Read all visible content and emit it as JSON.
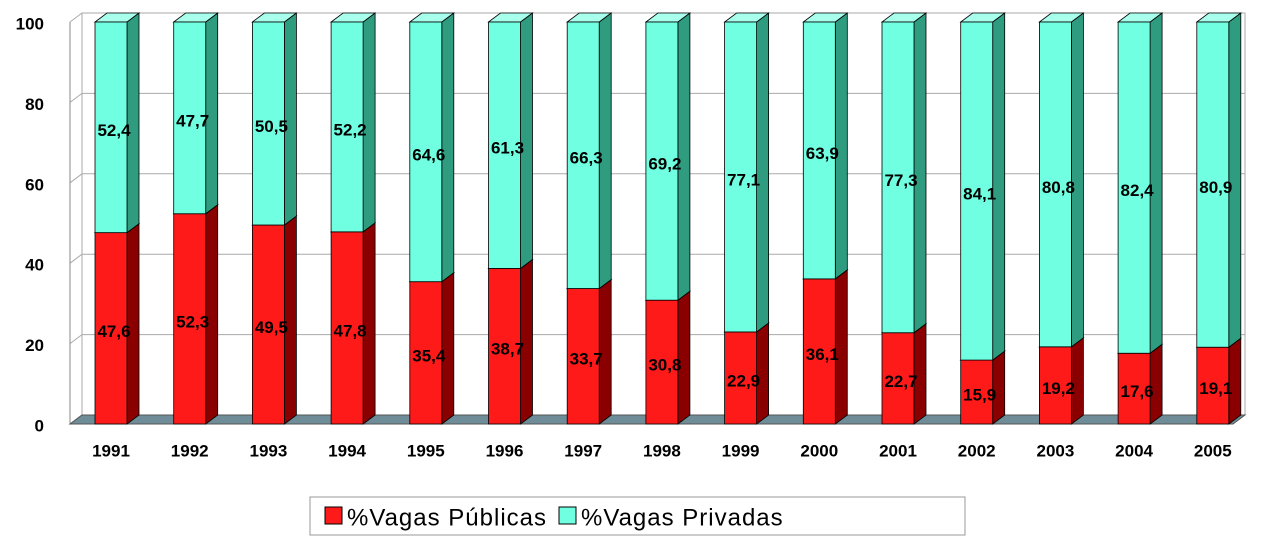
{
  "chart_data": {
    "type": "bar3d_stacked",
    "categories": [
      "1991",
      "1992",
      "1993",
      "1994",
      "1995",
      "1996",
      "1997",
      "1998",
      "1999",
      "2000",
      "2001",
      "2002",
      "2003",
      "2004",
      "2005"
    ],
    "series": [
      {
        "name": "%Vagas Públicas",
        "color": "#ff1a1a",
        "values": [
          47.6,
          52.3,
          49.5,
          47.8,
          35.4,
          38.7,
          33.7,
          30.8,
          22.9,
          36.1,
          22.7,
          15.9,
          19.2,
          17.6,
          19.1
        ],
        "value_labels": [
          "47,6",
          "52,3",
          "49,5",
          "47,8",
          "35,4",
          "38,7",
          "33,7",
          "30,8",
          "22,9",
          "36,1",
          "22,7",
          "15,9",
          "19,2",
          "17,6",
          "19,1"
        ]
      },
      {
        "name": "%Vagas Privadas",
        "color": "#70ffe0",
        "values": [
          52.4,
          47.7,
          50.5,
          52.2,
          64.6,
          61.3,
          66.3,
          69.2,
          77.1,
          63.9,
          77.3,
          84.1,
          80.8,
          82.4,
          80.9
        ],
        "value_labels": [
          "52,4",
          "47,7",
          "50,5",
          "52,2",
          "64,6",
          "61,3",
          "66,3",
          "69,2",
          "77,1",
          "63,9",
          "77,3",
          "84,1",
          "80,8",
          "82,4",
          "80,9"
        ]
      }
    ],
    "ylim": [
      0,
      100
    ],
    "yticks": [
      0,
      20,
      40,
      60,
      80,
      100
    ],
    "grid": true,
    "legend": "bottom"
  }
}
